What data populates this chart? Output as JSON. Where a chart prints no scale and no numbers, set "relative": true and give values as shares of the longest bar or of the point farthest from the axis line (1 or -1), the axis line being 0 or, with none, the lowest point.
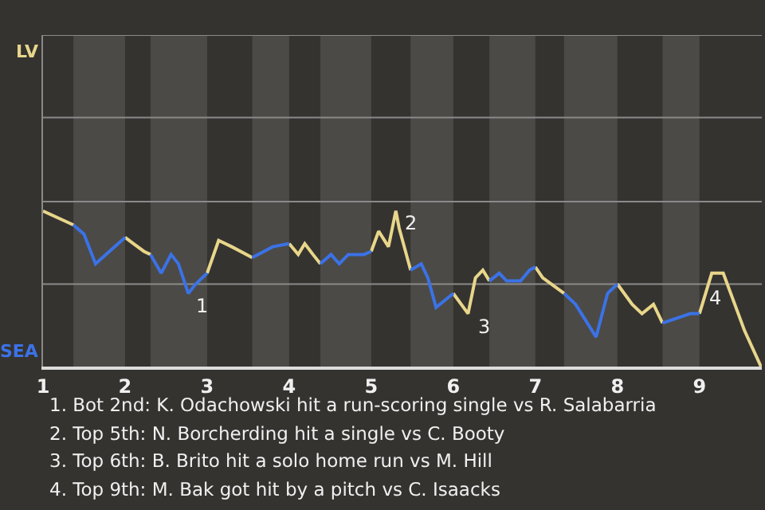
{
  "chart_data": {
    "type": "line",
    "relative": true,
    "marker": "none",
    "line_style": "solid",
    "ref_lines": [
      {
        "axis": "y",
        "value": 0.53,
        "color": "#8a8a8a"
      },
      {
        "axis": "y",
        "value": 1.06,
        "color": "#8a8a8a"
      },
      {
        "axis": "y",
        "value": 1.6,
        "color": "#8a8a8a"
      },
      {
        "axis": "y",
        "value": 2.13,
        "color": "#8a8a8a"
      }
    ],
    "xlim": [
      1,
      9.76
    ],
    "xticks": [
      1,
      2,
      3,
      4,
      5,
      6,
      7,
      8,
      9
    ],
    "series": [
      {
        "color": "#e8d68a",
        "x": [
          1,
          1.37,
          1.7,
          2,
          2.1,
          2.23,
          2.31,
          2.65,
          3,
          3.14,
          3.3,
          3.55,
          3.8,
          4,
          4.11,
          4.19,
          4.29,
          4.38,
          4.7,
          5,
          5.09,
          5.21,
          5.3,
          5.34,
          5.48,
          5.75,
          6,
          6.18,
          6.27,
          6.36,
          6.44,
          6.7,
          7,
          7.09,
          7.35,
          7.7,
          8,
          8.18,
          8.3,
          8.44,
          8.55,
          8.8,
          9,
          9.15,
          9.29,
          9.55,
          9.75
        ],
        "values": [
          1,
          0.91,
          null,
          0.83,
          0.79,
          0.74,
          0.72,
          null,
          0.6,
          0.81,
          0.77,
          0.7,
          null,
          0.79,
          0.72,
          0.79,
          0.72,
          0.66,
          null,
          0.74,
          0.87,
          0.77,
          1,
          0.89,
          0.62,
          null,
          0.47,
          0.34,
          0.57,
          0.62,
          0.55,
          null,
          0.64,
          0.57,
          0.47,
          null,
          0.53,
          0.4,
          0.34,
          0.4,
          0.28,
          null,
          0.34,
          0.6,
          0.6,
          0.23,
          0
        ]
      },
      {
        "color": "#3b72e6",
        "x": [
          1.37,
          1.5,
          1.64,
          2,
          2.15,
          2.31,
          2.44,
          2.56,
          2.65,
          2.77,
          2.86,
          3,
          3.3,
          3.55,
          3.8,
          4,
          4.2,
          4.38,
          4.51,
          4.61,
          4.72,
          4.91,
          5,
          5.2,
          5.48,
          5.61,
          5.69,
          5.79,
          6,
          6.2,
          6.44,
          6.56,
          6.65,
          6.82,
          6.93,
          7,
          7.2,
          7.35,
          7.49,
          7.74,
          7.88,
          8,
          8.3,
          8.55,
          8.89,
          9
        ],
        "values": [
          0.91,
          0.85,
          0.66,
          0.83,
          null,
          0.72,
          0.6,
          0.72,
          0.66,
          0.47,
          0.53,
          0.6,
          null,
          0.7,
          0.77,
          0.79,
          null,
          0.66,
          0.72,
          0.66,
          0.72,
          0.72,
          0.74,
          null,
          0.62,
          0.66,
          0.57,
          0.38,
          0.47,
          null,
          0.55,
          0.6,
          0.55,
          0.55,
          0.62,
          0.64,
          null,
          0.47,
          0.4,
          0.19,
          0.47,
          0.53,
          null,
          0.28,
          0.34,
          0.34
        ]
      }
    ],
    "bands": [
      {
        "axis": "x",
        "from": 1.37,
        "to": 2,
        "color": "#4b4a47"
      },
      {
        "axis": "x",
        "from": 2.31,
        "to": 3,
        "color": "#4b4a47"
      },
      {
        "axis": "x",
        "from": 3.55,
        "to": 4,
        "color": "#4b4a47"
      },
      {
        "axis": "x",
        "from": 4.38,
        "to": 5,
        "color": "#4b4a47"
      },
      {
        "axis": "x",
        "from": 5.48,
        "to": 6,
        "color": "#4b4a47"
      },
      {
        "axis": "x",
        "from": 6.44,
        "to": 7,
        "color": "#4b4a47"
      },
      {
        "axis": "x",
        "from": 7.35,
        "to": 8,
        "color": "#4b4a47"
      },
      {
        "axis": "x",
        "from": 8.55,
        "to": 9,
        "color": "#4b4a47"
      }
    ],
    "annotations": [
      "LV",
      "SEA",
      {
        "text": "1",
        "x": 2.77,
        "y": 0.47
      },
      {
        "text": "2",
        "x": 5.3,
        "y": 1
      },
      {
        "text": "3",
        "x": 6.18,
        "y": 0.34
      },
      {
        "text": "4",
        "x": 9.15,
        "y": 0.6
      },
      "1. Bot 2nd: K. Odachowski hit a run-scoring single vs R. Salabarria",
      "2. Top 5th: N. Borcherding hit a single vs C. Booty",
      "3. Top 6th: B. Brito hit a solo home run vs M. Hill",
      "4. Top 9th: M. Bak got hit by a pitch vs C. Isaacks"
    ]
  }
}
